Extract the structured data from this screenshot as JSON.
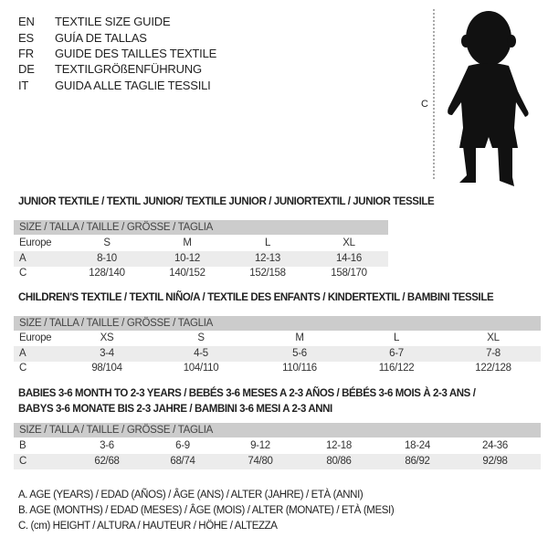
{
  "titles": [
    {
      "code": "EN",
      "text": "TEXTILE SIZE GUIDE"
    },
    {
      "code": "ES",
      "text": "GUÍA DE TALLAS"
    },
    {
      "code": "FR",
      "text": "GUIDE DES TAILLES TEXTILE"
    },
    {
      "code": "DE",
      "text": "TEXTILGRÖßENFÜHRUNG"
    },
    {
      "code": "IT",
      "text": "GUIDA ALLE TAGLIE TESSILI"
    }
  ],
  "figure": {
    "label": "C"
  },
  "junior": {
    "heading": "JUNIOR TEXTILE / TEXTIL JUNIOR/ TEXTILE JUNIOR / JUNIORTEXTIL / JUNIOR TESSILE",
    "header": "SIZE / TALLA / TAILLE / GRÖSSE / TAGLIA",
    "rows": [
      {
        "label": "Europe",
        "values": [
          "S",
          "M",
          "L",
          "XL"
        ]
      },
      {
        "label": "A",
        "values": [
          "8-10",
          "10-12",
          "12-13",
          "14-16"
        ]
      },
      {
        "label": "C",
        "values": [
          "128/140",
          "140/152",
          "152/158",
          "158/170"
        ]
      }
    ]
  },
  "children": {
    "heading": "CHILDREN'S TEXTILE / TEXTIL NIÑO/A / TEXTILE DES ENFANTS / KINDERTEXTIL / BAMBINI TESSILE",
    "header": "SIZE / TALLA / TAILLE / GRÖSSE / TAGLIA",
    "rows": [
      {
        "label": "Europe",
        "values": [
          "XS",
          "S",
          "M",
          "L",
          "XL"
        ]
      },
      {
        "label": "A",
        "values": [
          "3-4",
          "4-5",
          "5-6",
          "6-7",
          "7-8"
        ]
      },
      {
        "label": "C",
        "values": [
          "98/104",
          "104/110",
          "110/116",
          "116/122",
          "122/128"
        ]
      }
    ]
  },
  "babies": {
    "heading1": "BABIES 3-6 MONTH TO 2-3 YEARS / BEBÉS 3-6 MESES A 2-3 AÑOS / BÉBÉS 3-6 MOIS À 2-3 ANS /",
    "heading2": "BABYS 3-6 MONATE BIS 2-3 JAHRE / BAMBINI 3-6 MESI A 2-3 ANNI",
    "header": "SIZE / TALLA / TAILLE / GRÖSSE / TAGLIA",
    "rows": [
      {
        "label": "B",
        "values": [
          "3-6",
          "6-9",
          "9-12",
          "12-18",
          "18-24",
          "24-36"
        ]
      },
      {
        "label": "C",
        "values": [
          "62/68",
          "68/74",
          "74/80",
          "80/86",
          "86/92",
          "92/98"
        ]
      }
    ]
  },
  "legend": [
    "A. AGE (YEARS) / EDAD (AÑOS) / ÂGE (ANS) / ALTER (JAHRE) / ETÀ (ANNI)",
    "B. AGE (MONTHS) / EDAD (MESES) / ÂGE (MOIS) / ALTER (MONATE) / ETÀ (MESI)",
    "C. (cm) HEIGHT / ALTURA / HAUTEUR / HÖHE / ALTEZZA"
  ]
}
